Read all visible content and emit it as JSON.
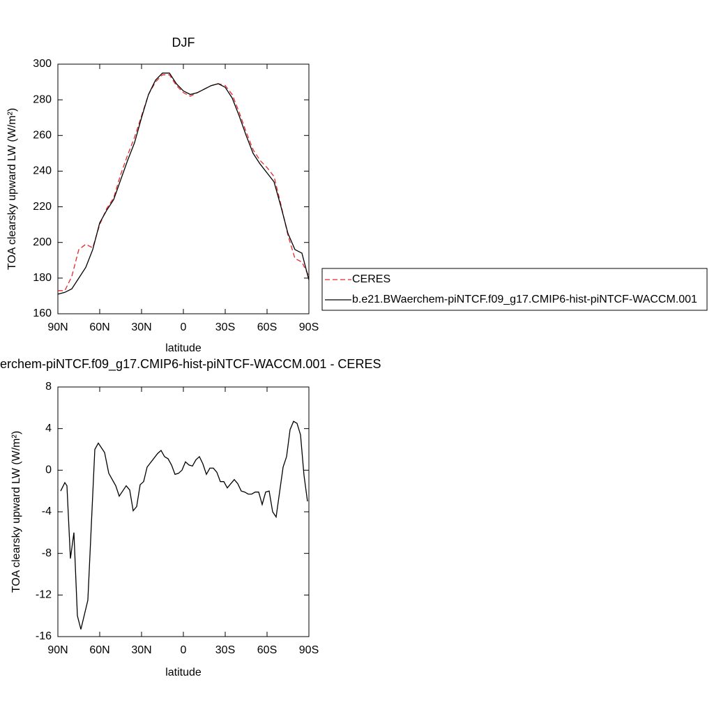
{
  "chart_data": [
    {
      "type": "line",
      "title": "DJF",
      "xlabel": "latitude",
      "ylabel": "TOA clearsky upward LW (W/m²)",
      "x": [
        90,
        85,
        80,
        75,
        70,
        65,
        60,
        55,
        50,
        45,
        40,
        35,
        30,
        25,
        20,
        15,
        10,
        5,
        0,
        -5,
        -10,
        -15,
        -20,
        -25,
        -30,
        -35,
        -40,
        -45,
        -50,
        -55,
        -60,
        -65,
        -70,
        -75,
        -80,
        -85,
        -90
      ],
      "series": [
        {
          "name": "CERES",
          "color": "#e8262a",
          "line_style": "dashed",
          "values": [
            173,
            173,
            181,
            196,
            199,
            197,
            210,
            219,
            225,
            238,
            249,
            259,
            271,
            283,
            290,
            294,
            294,
            288,
            284,
            282,
            284,
            286,
            288,
            289,
            288,
            283,
            273,
            262,
            252,
            246,
            242,
            237,
            221,
            204,
            191,
            189,
            181
          ]
        },
        {
          "name": "b.e21.BWaerchem-piNTCF.f09_g17.CMIP6-hist-piNTCF-WACCM.001",
          "color": "#000000",
          "line_style": "solid",
          "values": [
            171,
            172,
            174,
            180,
            186,
            196,
            211,
            218,
            224,
            235,
            246,
            256,
            270,
            283,
            291,
            295,
            295,
            289,
            285,
            283,
            284,
            286,
            288,
            289,
            287,
            281,
            271,
            260,
            250,
            244,
            239,
            234,
            220,
            205,
            196,
            194,
            179
          ]
        }
      ],
      "xlim": [
        90,
        -90
      ],
      "xticks": [
        {
          "value": 90,
          "label": "90N"
        },
        {
          "value": 60,
          "label": "60N"
        },
        {
          "value": 30,
          "label": "30N"
        },
        0,
        {
          "value": -30,
          "label": "30S"
        },
        {
          "value": -60,
          "label": "60S"
        },
        {
          "value": -90,
          "label": "90S"
        }
      ],
      "ylim": [
        160,
        300
      ],
      "yticks": [
        160,
        180,
        200,
        220,
        240,
        260,
        280,
        300
      ],
      "legend": "right"
    },
    {
      "type": "line",
      "title": "erchem-piNTCF.f09_g17.CMIP6-hist-piNTCF-WACCM.001 - CERES",
      "xlabel": "latitude",
      "ylabel": "TOA clearsky upward LW (W/m²)",
      "color": "#000000",
      "x": [
        88,
        85,
        83.5,
        81,
        78.5,
        76,
        73.5,
        68.5,
        63.5,
        61,
        56.5,
        53.5,
        48.5,
        46,
        41,
        38.5,
        36,
        33.5,
        31,
        28.5,
        26,
        18.5,
        16,
        13.5,
        11,
        8.5,
        6,
        3.5,
        1,
        -1.5,
        -4,
        -6.5,
        -9,
        -11.5,
        -14,
        -16.5,
        -19,
        -21.5,
        -24,
        -26.5,
        -29,
        -31.5,
        -34,
        -36.5,
        -39,
        -41.5,
        -44,
        -46.5,
        -49,
        -51.5,
        -54,
        -56.5,
        -59,
        -61.5,
        -64,
        -66.5,
        -71.5,
        -74,
        -76.5,
        -79,
        -81.5,
        -84,
        -86.5,
        -89
      ],
      "values": [
        -2,
        -1.2,
        -1.5,
        -8.5,
        -6,
        -14,
        -15.3,
        -12.5,
        2,
        2.6,
        1.7,
        -0.3,
        -1.5,
        -2.5,
        -1.5,
        -1.9,
        -3.9,
        -3.5,
        -1.4,
        -1.1,
        0.3,
        1.6,
        1.9,
        1.3,
        1.1,
        0.5,
        -0.4,
        -0.3,
        0,
        0.8,
        0.5,
        0.4,
        1,
        1.3,
        0.6,
        -0.4,
        0.2,
        0.2,
        -0.2,
        -1.1,
        -1.1,
        -1.7,
        -1.3,
        -0.9,
        -1.3,
        -2,
        -2.1,
        -2.3,
        -2.3,
        -2.1,
        -2.1,
        -3.3,
        -2.1,
        -2,
        -4,
        -4.5,
        0.3,
        1.3,
        3.9,
        4.7,
        4.5,
        3.4,
        -0.5,
        -3
      ],
      "xlim": [
        90,
        -90
      ],
      "xticks": [
        {
          "value": 90,
          "label": "90N"
        },
        {
          "value": 60,
          "label": "60N"
        },
        {
          "value": 30,
          "label": "30N"
        },
        0,
        {
          "value": -30,
          "label": "30S"
        },
        {
          "value": -60,
          "label": "60S"
        },
        {
          "value": -90,
          "label": "90S"
        }
      ],
      "ylim": [
        -16,
        8
      ],
      "yticks": [
        -16,
        -12,
        -8,
        -4,
        0,
        4,
        8
      ]
    }
  ]
}
